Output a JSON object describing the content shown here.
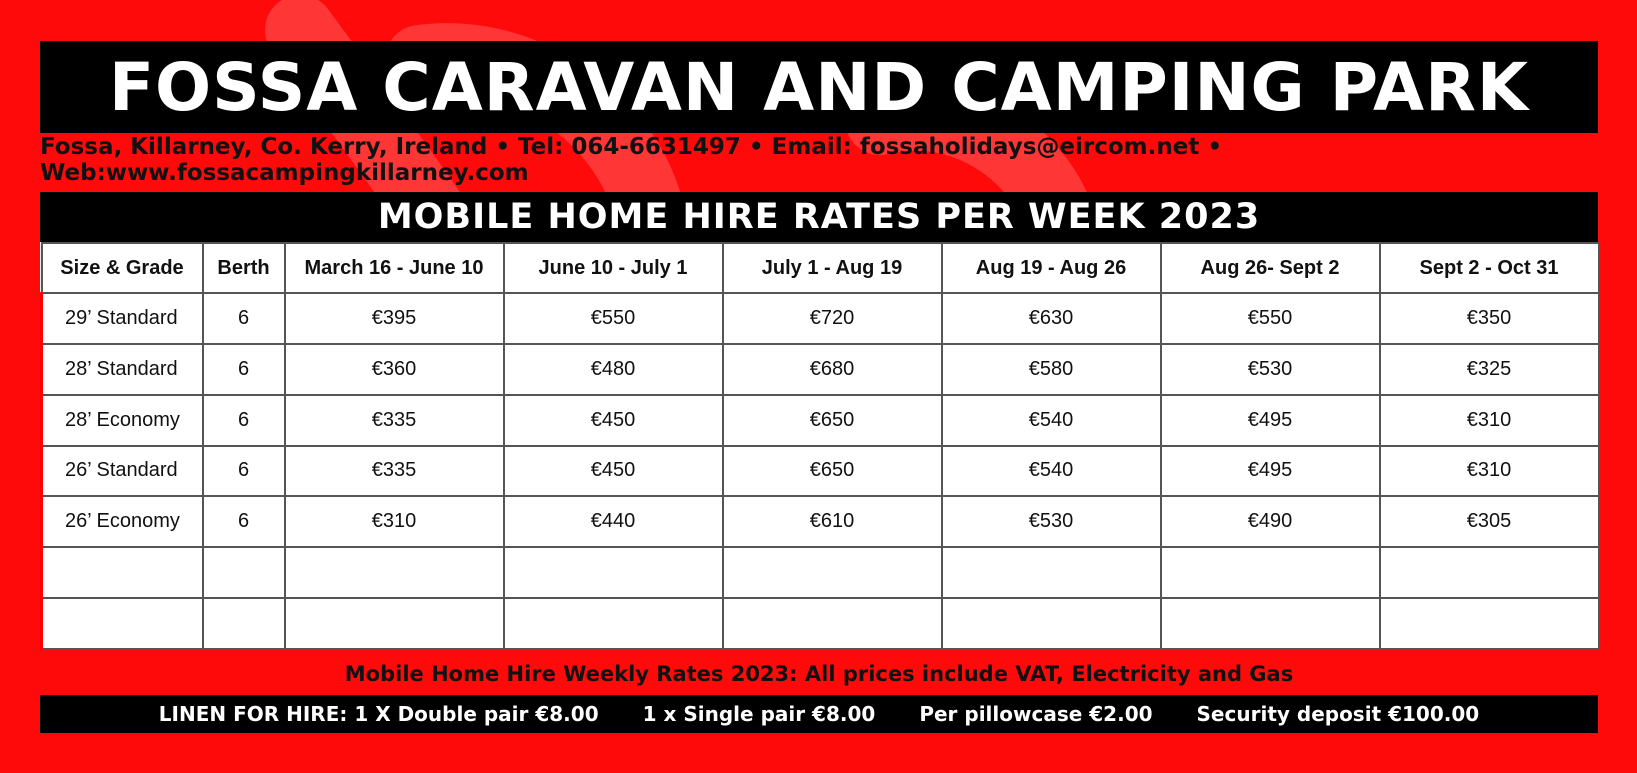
{
  "header": {
    "title": "FOSSA CARAVAN AND CAMPING PARK",
    "contact": "Fossa, Killarney, Co. Kerry, Ireland • Tel: 064-6631497 • Email: fossaholidays@eircom.net • Web:www.fossacampingkillarney.com"
  },
  "rates": {
    "heading": "MOBILE HOME HIRE RATES PER WEEK 2023",
    "columns": [
      "Size & Grade",
      "Berth",
      "March 16 - June 10",
      "June 10 - July 1",
      "July 1 - Aug 19",
      "Aug 19 - Aug 26",
      "Aug 26- Sept 2",
      "Sept 2 - Oct 31"
    ],
    "rows": [
      [
        "29’ Standard",
        "6",
        "€395",
        "€550",
        "€720",
        "€630",
        "€550",
        "€350"
      ],
      [
        "28’ Standard",
        "6",
        "€360",
        "€480",
        "€680",
        "€580",
        "€530",
        "€325"
      ],
      [
        "28’ Economy",
        "6",
        "€335",
        "€450",
        "€650",
        "€540",
        "€495",
        "€310"
      ],
      [
        "26’ Standard",
        "6",
        "€335",
        "€450",
        "€650",
        "€540",
        "€495",
        "€310"
      ],
      [
        "26’ Economy",
        "6",
        "€310",
        "€440",
        "€610",
        "€530",
        "€490",
        "€305"
      ],
      [
        "",
        "",
        "",
        "",
        "",
        "",
        "",
        ""
      ],
      [
        "",
        "",
        "",
        "",
        "",
        "",
        "",
        ""
      ]
    ]
  },
  "footer": {
    "note": "Mobile Home Hire Weekly Rates 2023: All prices include VAT, Electricity and Gas",
    "linen": [
      "LINEN FOR HIRE: 1 X Double pair €8.00",
      "1 x Single pair €8.00",
      "Per pillowcase €2.00",
      "Security deposit €100.00"
    ]
  },
  "colors": {
    "background": "#ff0a0a",
    "bars": "#000000",
    "table": "#ffffff"
  }
}
